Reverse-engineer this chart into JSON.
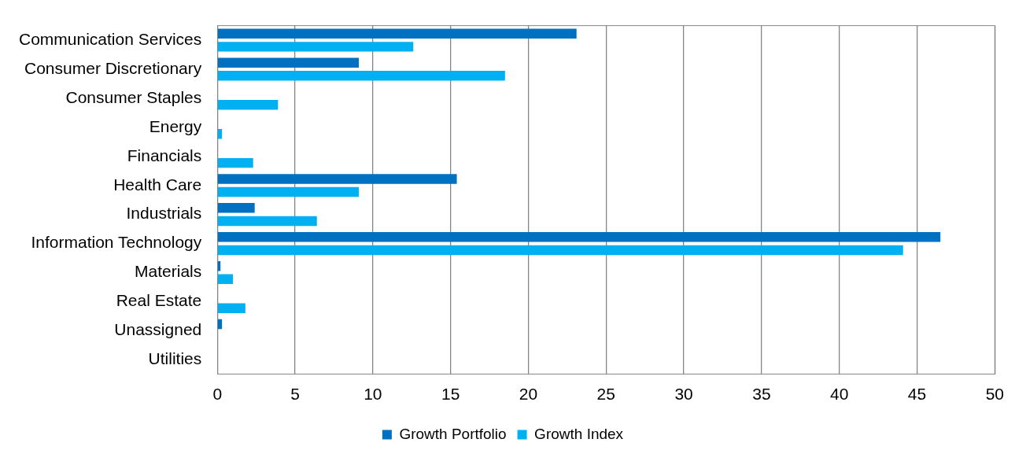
{
  "chart_data": {
    "type": "bar",
    "orientation": "horizontal",
    "categories": [
      "Communication Services",
      "Consumer Discretionary",
      "Consumer Staples",
      "Energy",
      "Financials",
      "Health Care",
      "Industrials",
      "Information Technology",
      "Materials",
      "Real Estate",
      "Unassigned",
      "Utilities"
    ],
    "series": [
      {
        "name": "Growth Portfolio",
        "color": "#0070c0",
        "values": [
          23.1,
          9.1,
          0,
          0,
          0,
          15.4,
          2.4,
          46.5,
          0.2,
          0,
          0.3,
          0
        ]
      },
      {
        "name": "Growth Index",
        "color": "#00b0f0",
        "values": [
          12.6,
          18.5,
          3.9,
          0.3,
          2.3,
          9.1,
          6.4,
          44.1,
          1.0,
          1.8,
          0,
          0
        ]
      }
    ],
    "xlim": [
      0,
      50
    ],
    "xticks": [
      0,
      5,
      10,
      15,
      20,
      25,
      30,
      35,
      40,
      45,
      50
    ],
    "grid": "x",
    "legend": "bottom"
  }
}
